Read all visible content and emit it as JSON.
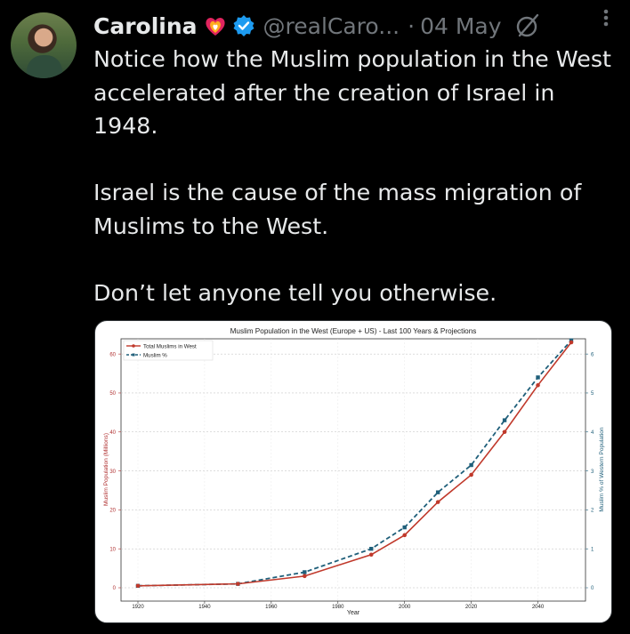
{
  "tweet": {
    "author_name": "Carolina",
    "handle": "@realCaro...",
    "separator": "·",
    "date": "04 May",
    "paragraphs": [
      "Notice how the Muslim population in the West accelerated after the creation of Israel in 1948.",
      "Israel is the cause of the mass migration of Muslims to the West.",
      "Don’t let anyone tell you otherwise."
    ]
  },
  "colors": {
    "background": "#000000",
    "text": "#e7e9ea",
    "muted": "#71767b",
    "verified": "#1d9bf0",
    "series_total": "#c0392b",
    "series_pct": "#1f5f7a"
  },
  "icons": {
    "heart": "flaming-heart-icon",
    "verified": "verified-badge-icon",
    "grok": "grok-icon",
    "more": "more-options-icon"
  },
  "chart_data": {
    "type": "line",
    "title": "Muslim Population in the West (Europe + US) - Last 100 Years & Projections",
    "xlabel": "Year",
    "ylabel": "Muslim Population (Millions)",
    "y2label": "Muslim % of Western Population",
    "x": [
      1920,
      1950,
      1970,
      1990,
      2000,
      2010,
      2020,
      2030,
      2040,
      2050
    ],
    "xlim": [
      1920,
      2050
    ],
    "xticks": [
      "1920",
      "1940",
      "1960",
      "1980",
      "2000",
      "2020",
      "2040"
    ],
    "ylim": [
      0,
      63
    ],
    "yticks": [
      "0",
      "10",
      "20",
      "30",
      "40",
      "50",
      "60"
    ],
    "y2lim": [
      0,
      6.3
    ],
    "y2ticks": [
      "0",
      "1",
      "2",
      "3",
      "4",
      "5",
      "6"
    ],
    "legend_position": "top-left",
    "grid": true,
    "series": [
      {
        "name": "Total Muslims in West",
        "axis": "left",
        "style": "solid",
        "marker": "circle",
        "values": [
          0.5,
          1,
          3,
          8.5,
          13.5,
          22,
          29,
          40,
          52,
          63
        ]
      },
      {
        "name": "Muslim %",
        "axis": "right",
        "style": "dashed",
        "marker": "square",
        "values": [
          0.05,
          0.1,
          0.4,
          1.0,
          1.55,
          2.45,
          3.15,
          4.3,
          5.4,
          6.35
        ]
      }
    ]
  }
}
